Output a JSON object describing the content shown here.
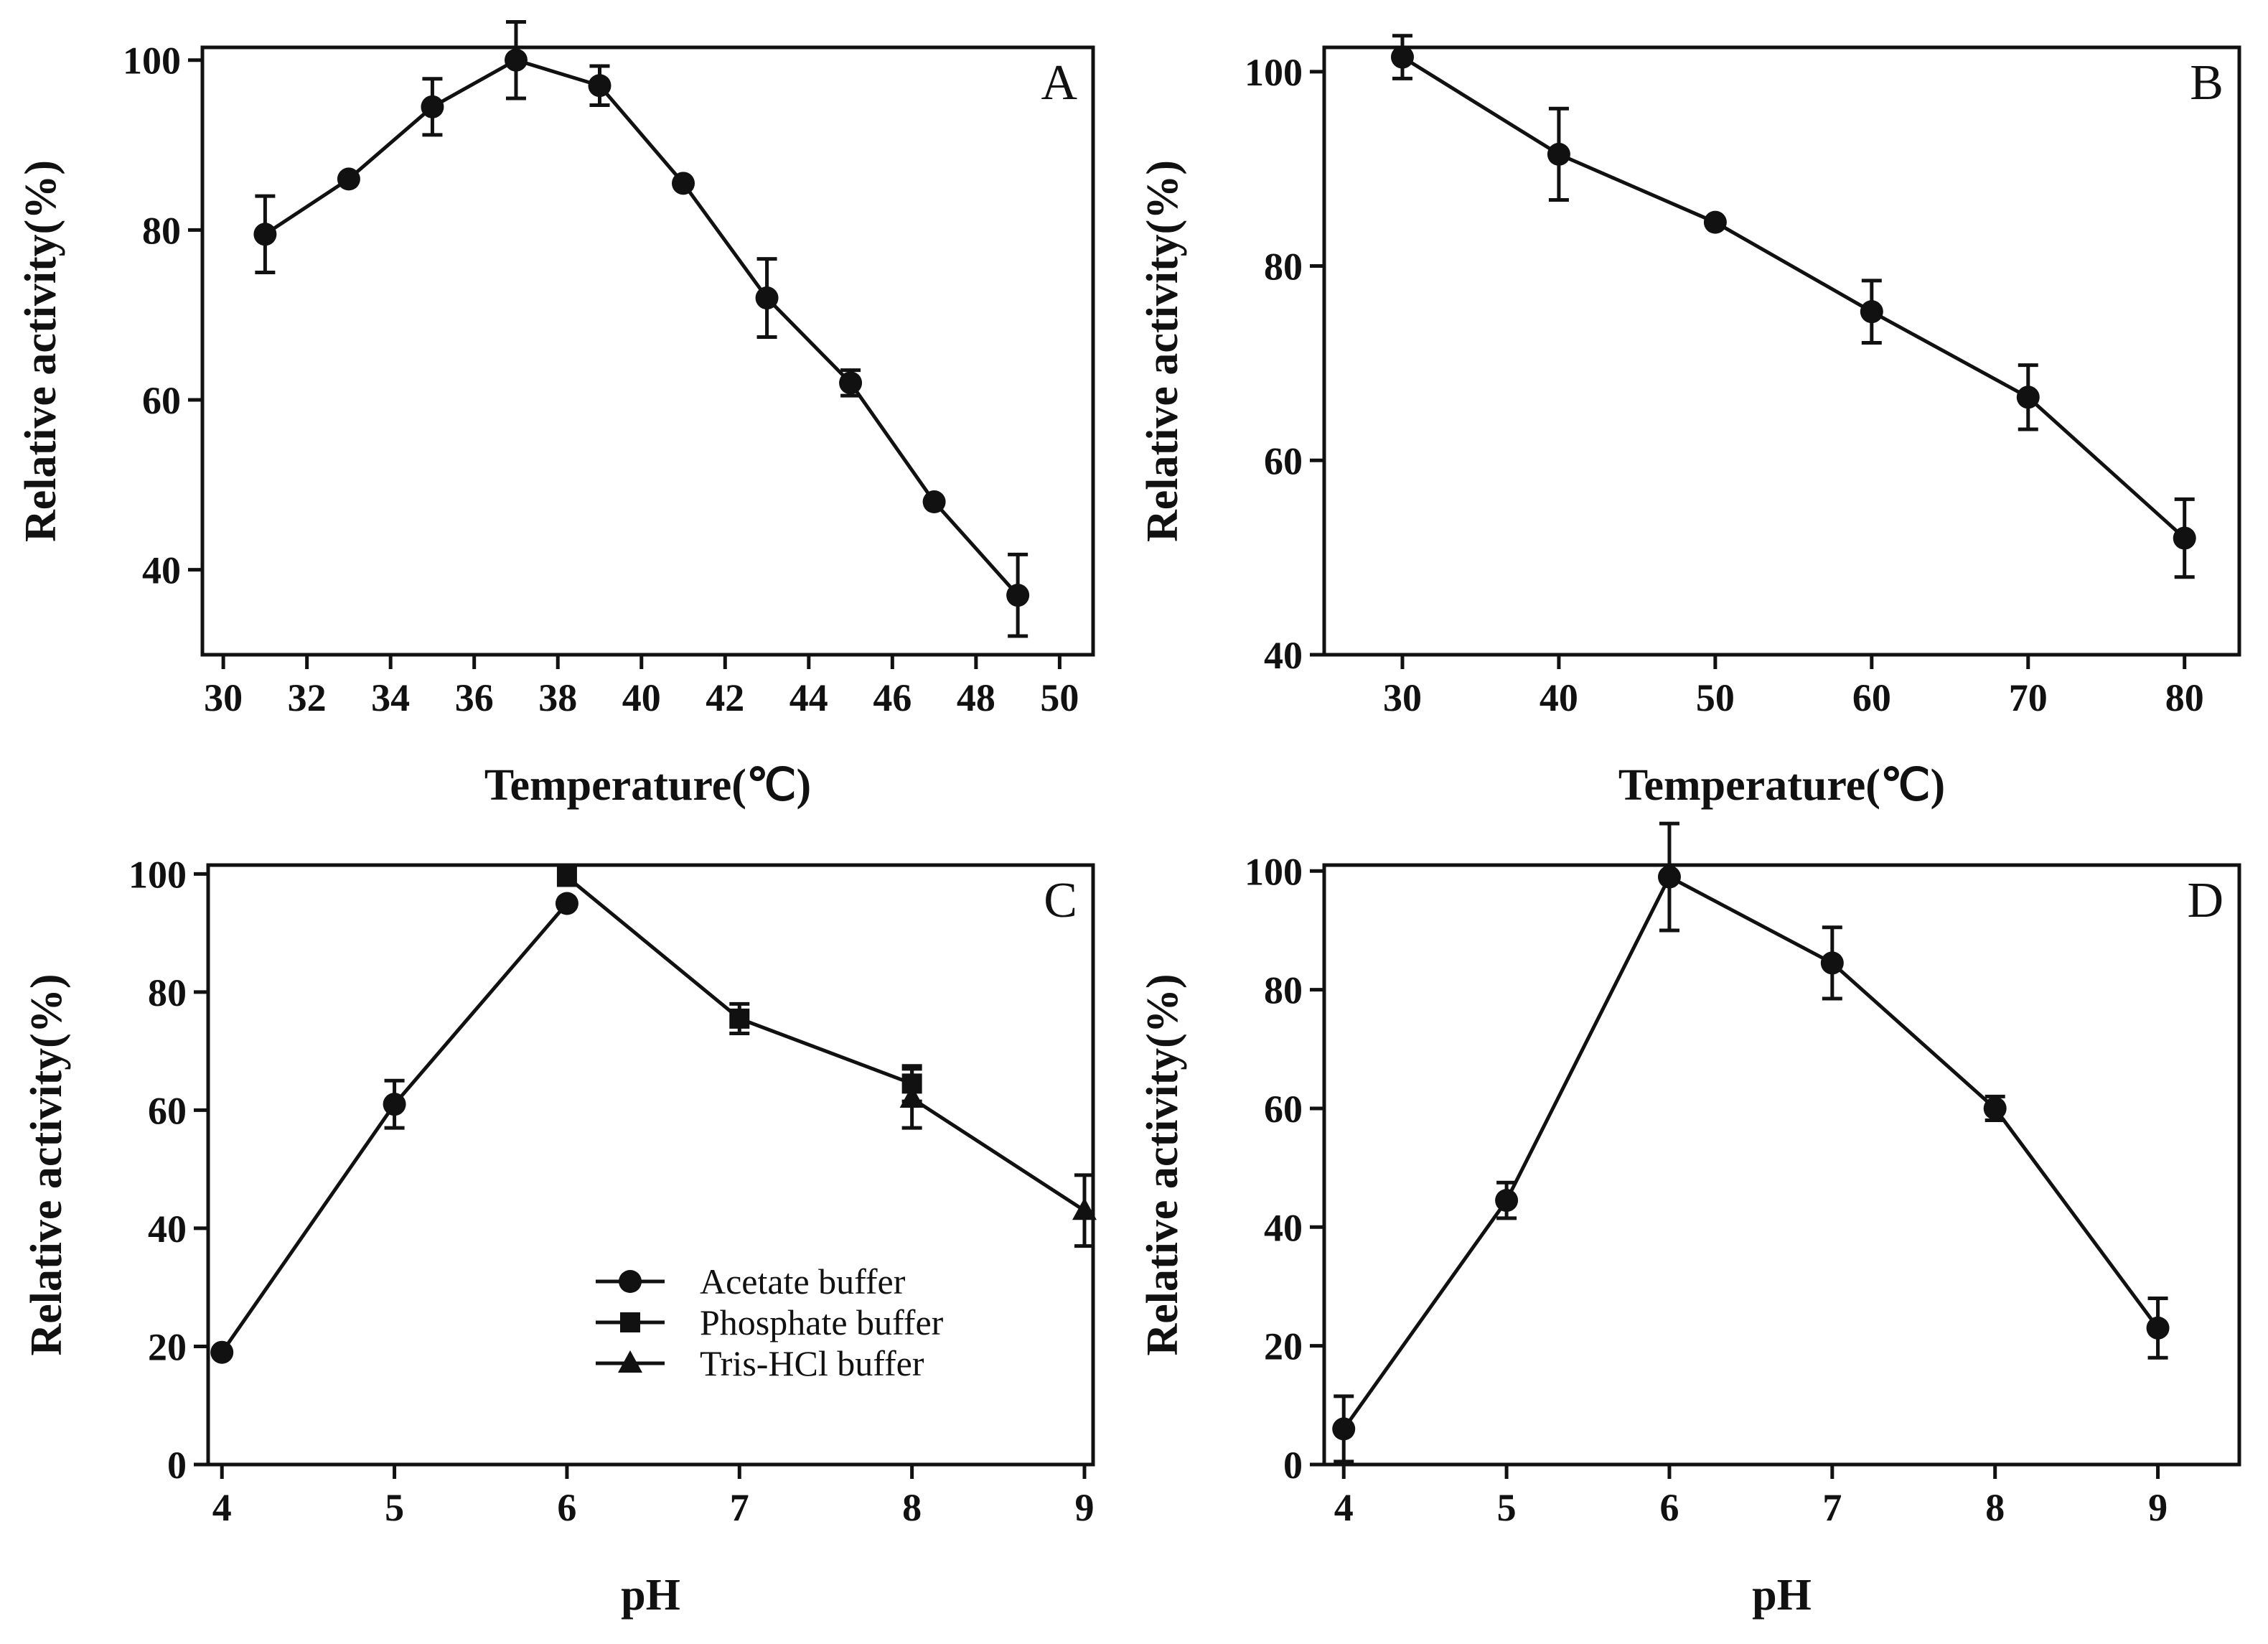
{
  "chart_data": [
    {
      "type": "line",
      "panel_label": "A",
      "xlabel": "Temperature(℃)",
      "ylabel": "Relative activity(%)",
      "xlim": [
        29.5,
        50.8
      ],
      "ylim": [
        30,
        101.5
      ],
      "xticks": [
        "30",
        "32",
        "34",
        "36",
        "38",
        "40",
        "42",
        "44",
        "46",
        "48",
        "50"
      ],
      "yticks": [
        "40",
        "60",
        "80",
        "100"
      ],
      "series": [
        {
          "name": "",
          "marker": "circle",
          "points": [
            {
              "x": 31,
              "y": 79.5,
              "err": 4.5
            },
            {
              "x": 33,
              "y": 86,
              "err": 0
            },
            {
              "x": 35,
              "y": 94.5,
              "err": 3.3
            },
            {
              "x": 37,
              "y": 100,
              "err": 4.5
            },
            {
              "x": 39,
              "y": 97,
              "err": 2.3
            },
            {
              "x": 41,
              "y": 85.5,
              "err": 0
            },
            {
              "x": 43,
              "y": 72,
              "err": 4.6
            },
            {
              "x": 45,
              "y": 62,
              "err": 1.5
            },
            {
              "x": 47,
              "y": 48,
              "err": 0
            },
            {
              "x": 49,
              "y": 37,
              "err": 4.8
            }
          ]
        }
      ]
    },
    {
      "type": "line",
      "panel_label": "B",
      "xlabel": "Temperature(℃)",
      "ylabel": "Relative activity(%)",
      "xlim": [
        25,
        83.5
      ],
      "ylim": [
        40,
        102.5
      ],
      "xticks": [
        "30",
        "40",
        "50",
        "60",
        "70",
        "80"
      ],
      "yticks": [
        "40",
        "60",
        "80",
        "100"
      ],
      "series": [
        {
          "name": "",
          "marker": "circle",
          "points": [
            {
              "x": 30,
              "y": 101.5,
              "err": 2.2
            },
            {
              "x": 40,
              "y": 91.5,
              "err": 4.7
            },
            {
              "x": 50,
              "y": 84.5,
              "err": 0
            },
            {
              "x": 60,
              "y": 75.3,
              "err": 3.2
            },
            {
              "x": 70,
              "y": 66.5,
              "err": 3.3
            },
            {
              "x": 80,
              "y": 52,
              "err": 4
            }
          ]
        }
      ]
    },
    {
      "type": "line",
      "panel_label": "C",
      "xlabel": "pH",
      "ylabel": "Relative activity(%)",
      "xlim": [
        3.92,
        9.05
      ],
      "ylim": [
        0,
        101.5
      ],
      "xticks": [
        "4",
        "5",
        "6",
        "7",
        "8",
        "9"
      ],
      "yticks": [
        "0",
        "20",
        "40",
        "60",
        "80",
        "100"
      ],
      "legend": {
        "position": "bottom-center",
        "entries": [
          "Acetate buffer",
          "Phosphate buffer",
          "Tris-HCl buffer"
        ]
      },
      "series": [
        {
          "name": "Acetate buffer",
          "marker": "circle",
          "points": [
            {
              "x": 4,
              "y": 19,
              "err": 0
            },
            {
              "x": 5,
              "y": 61,
              "err": 4
            },
            {
              "x": 6,
              "y": 95,
              "err": 0
            }
          ]
        },
        {
          "name": "Phosphate buffer",
          "marker": "square",
          "points": [
            {
              "x": 6,
              "y": 99.5,
              "err": 0
            },
            {
              "x": 7,
              "y": 75.5,
              "err": 2.5
            },
            {
              "x": 8,
              "y": 64.5,
              "err": 3
            }
          ]
        },
        {
          "name": "Tris-HCl buffer",
          "marker": "triangle",
          "points": [
            {
              "x": 8,
              "y": 62,
              "err": 5
            },
            {
              "x": 9,
              "y": 43,
              "err": 6
            }
          ]
        }
      ]
    },
    {
      "type": "line",
      "panel_label": "D",
      "xlabel": "pH",
      "ylabel": "Relative activity(%)",
      "xlim": [
        3.88,
        9.5
      ],
      "ylim": [
        0,
        101
      ],
      "xticks": [
        "4",
        "5",
        "6",
        "7",
        "8",
        "9"
      ],
      "yticks": [
        "0",
        "20",
        "40",
        "60",
        "80",
        "100"
      ],
      "series": [
        {
          "name": "",
          "marker": "circle",
          "points": [
            {
              "x": 4,
              "y": 6,
              "err": 5.5
            },
            {
              "x": 5,
              "y": 44.5,
              "err": 3
            },
            {
              "x": 6,
              "y": 99,
              "err": 9
            },
            {
              "x": 7,
              "y": 84.5,
              "err": 6
            },
            {
              "x": 8,
              "y": 60,
              "err": 2
            },
            {
              "x": 9,
              "y": 23,
              "err": 5
            }
          ]
        }
      ]
    }
  ]
}
